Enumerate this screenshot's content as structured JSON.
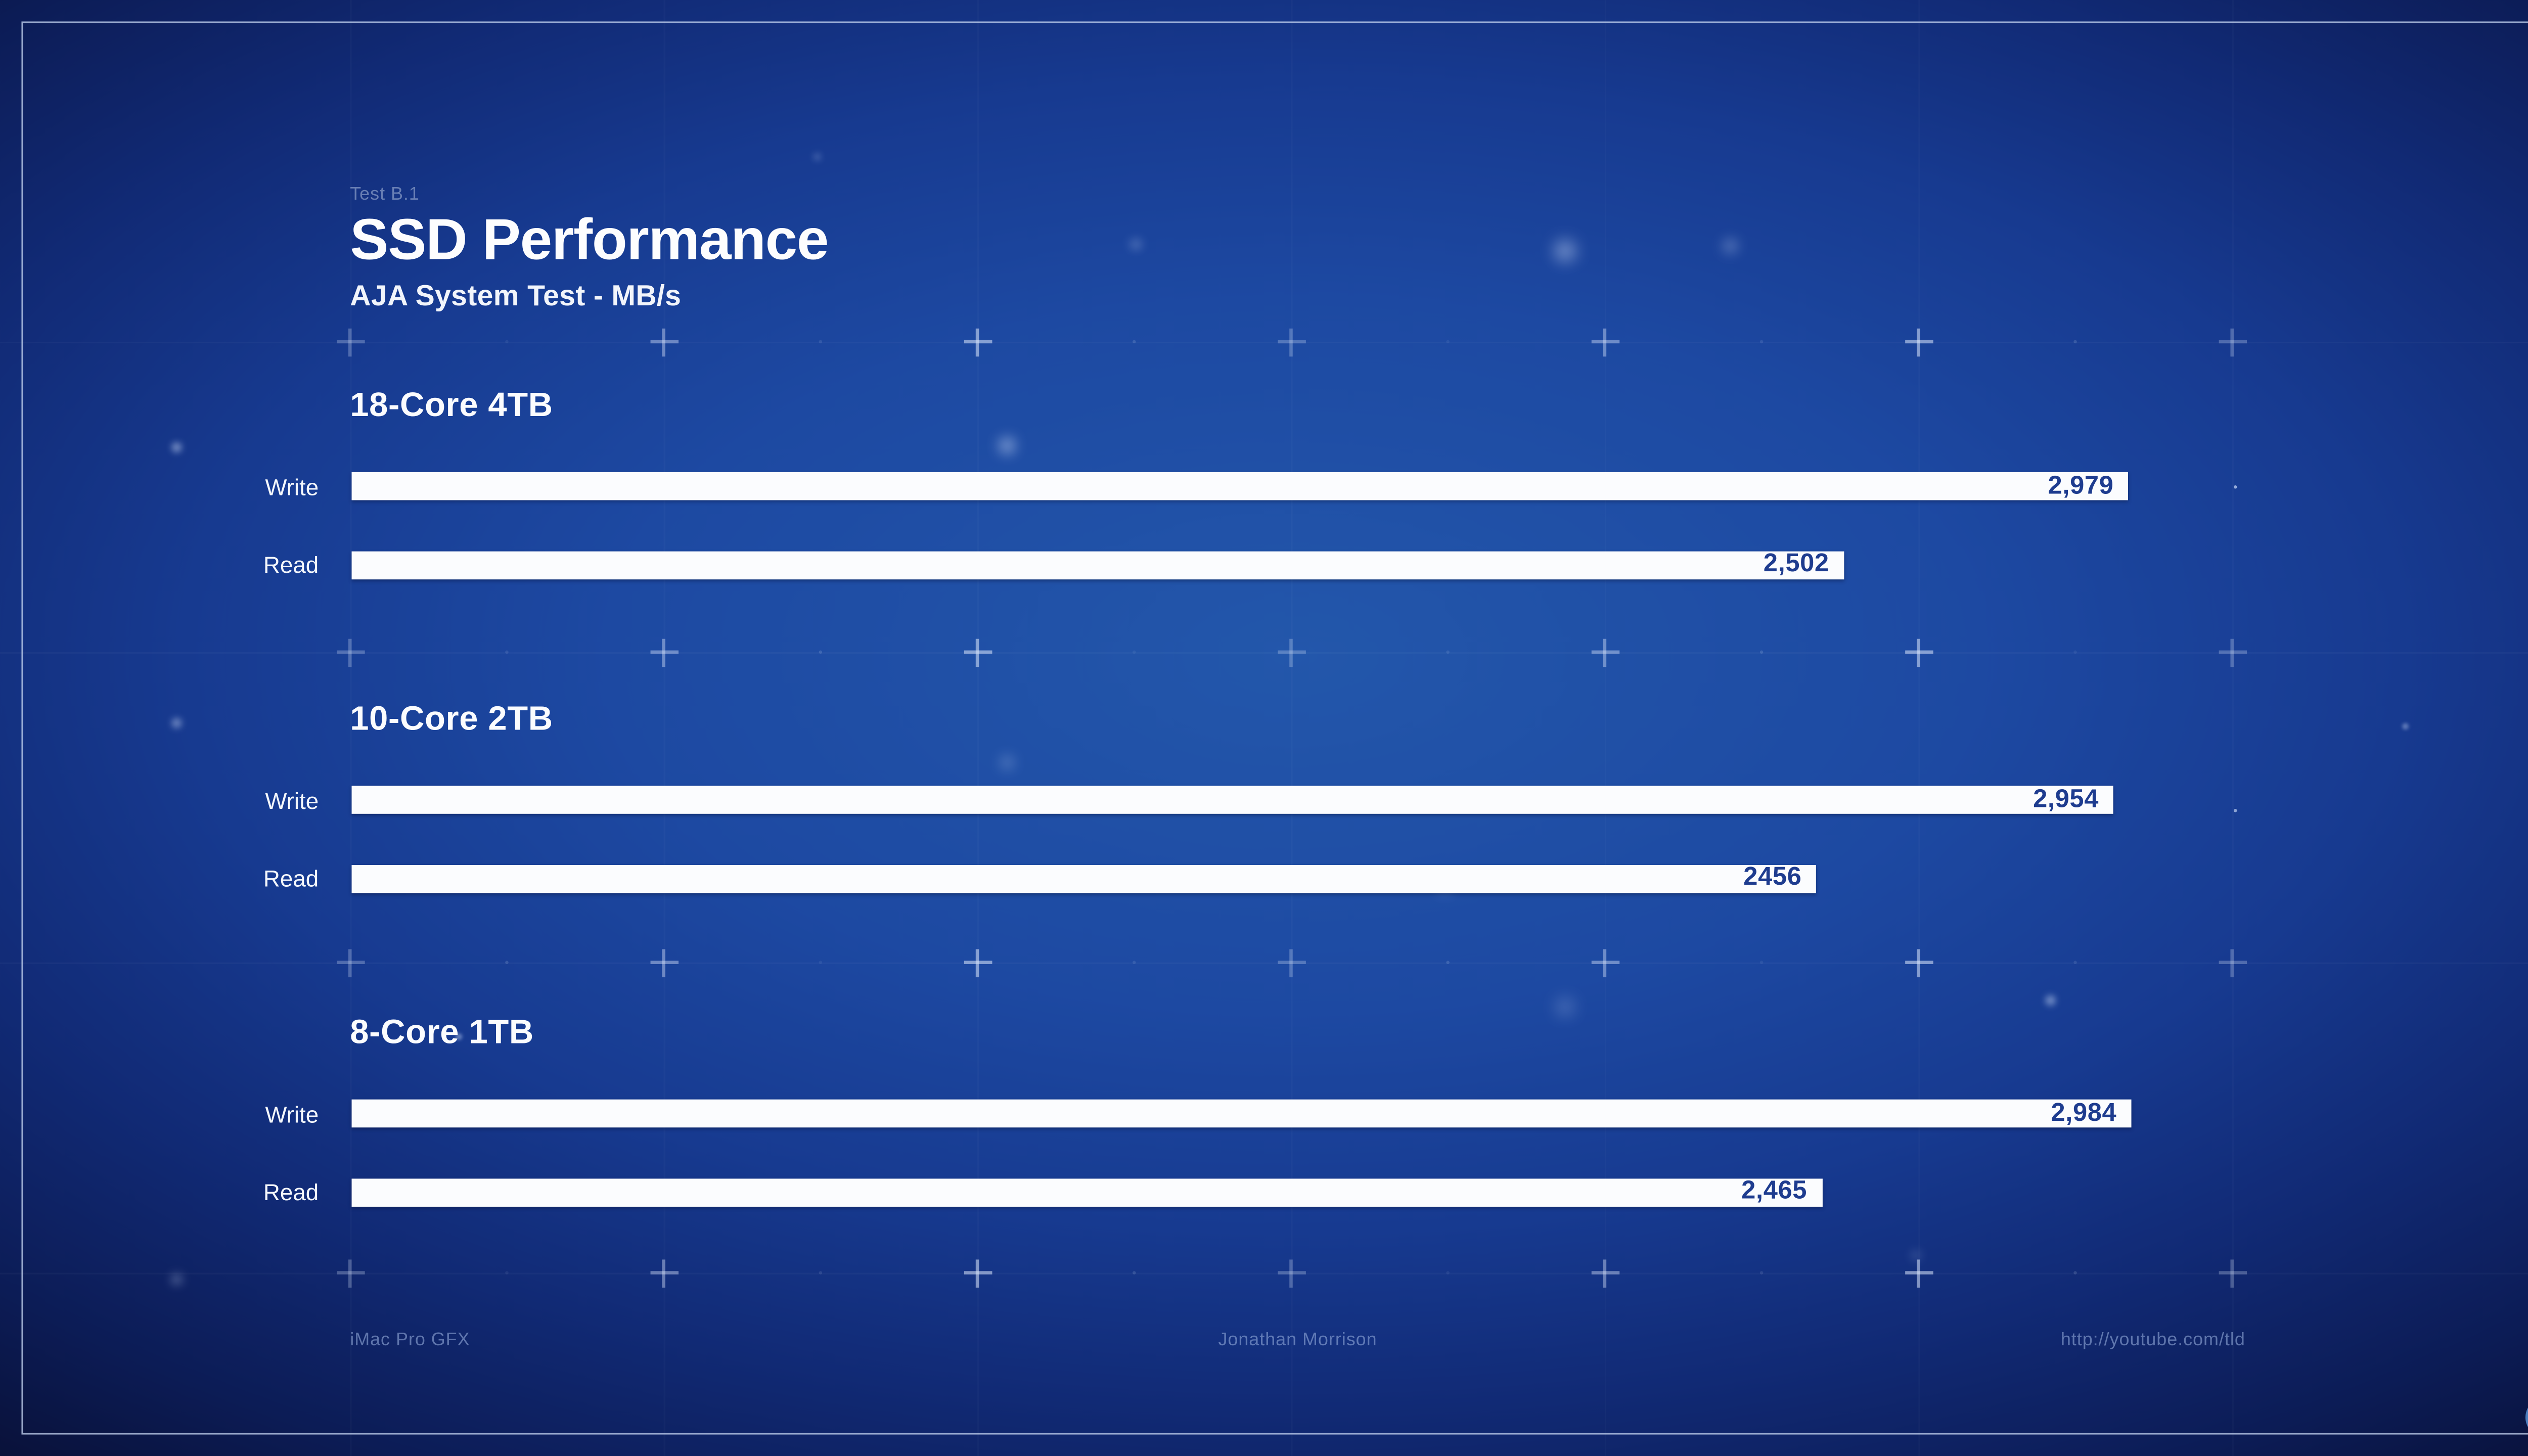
{
  "meta": {
    "label": "Test B.1",
    "title": "SSD Performance",
    "subtitle": "AJA System Test - MB/s"
  },
  "chart_data": {
    "type": "bar",
    "orientation": "horizontal",
    "unit": "MB/s",
    "title": "SSD Performance",
    "subtitle": "AJA System Test - MB/s",
    "value_axis_max": 3100,
    "grid": false,
    "legend": "none",
    "groups": [
      {
        "label": "18-Core 4TB",
        "bars": [
          {
            "name": "Write",
            "value": 2979,
            "display": "2,979"
          },
          {
            "name": "Read",
            "value": 2502,
            "display": "2,502"
          }
        ]
      },
      {
        "label": "10-Core 2TB",
        "bars": [
          {
            "name": "Write",
            "value": 2954,
            "display": "2,954"
          },
          {
            "name": "Read",
            "value": 2456,
            "display": "2456"
          }
        ]
      },
      {
        "label": "8-Core 1TB",
        "bars": [
          {
            "name": "Write",
            "value": 2984,
            "display": "2,984"
          },
          {
            "name": "Read",
            "value": 2465,
            "display": "2,465"
          }
        ]
      }
    ]
  },
  "footer": {
    "left": "iMac Pro GFX",
    "center": "Jonathan Morrison",
    "right": "http://youtube.com/tld"
  },
  "logo": {
    "icon": "lightbulb-logo-icon"
  },
  "colors": {
    "background_center": "#2357ab",
    "background_edge": "#091139",
    "frame": "#c4d3f0",
    "bar_fill": "#fbfcfe",
    "bar_value_text": "#1e3c8f",
    "title_text": "#fdfdfe",
    "muted_text": "#94acdb",
    "logo_blue": "#4b7dbd",
    "logo_base_gray": "#a7abb2"
  }
}
